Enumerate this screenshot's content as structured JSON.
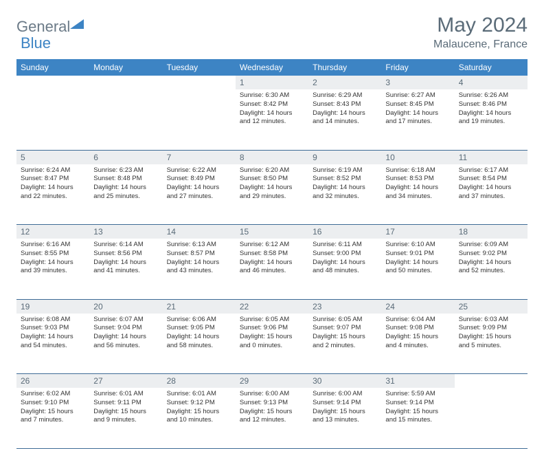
{
  "logo": {
    "general": "General",
    "blue": "Blue"
  },
  "title": "May 2024",
  "location": "Malaucene, France",
  "header_color": "#3d84c4",
  "daynum_bg": "#eceef0",
  "border_color": "#3d6a95",
  "days": [
    "Sunday",
    "Monday",
    "Tuesday",
    "Wednesday",
    "Thursday",
    "Friday",
    "Saturday"
  ],
  "weeks": [
    [
      null,
      null,
      null,
      {
        "n": "1",
        "sr": "6:30 AM",
        "ss": "8:42 PM",
        "dl": "14 hours and 12 minutes."
      },
      {
        "n": "2",
        "sr": "6:29 AM",
        "ss": "8:43 PM",
        "dl": "14 hours and 14 minutes."
      },
      {
        "n": "3",
        "sr": "6:27 AM",
        "ss": "8:45 PM",
        "dl": "14 hours and 17 minutes."
      },
      {
        "n": "4",
        "sr": "6:26 AM",
        "ss": "8:46 PM",
        "dl": "14 hours and 19 minutes."
      }
    ],
    [
      {
        "n": "5",
        "sr": "6:24 AM",
        "ss": "8:47 PM",
        "dl": "14 hours and 22 minutes."
      },
      {
        "n": "6",
        "sr": "6:23 AM",
        "ss": "8:48 PM",
        "dl": "14 hours and 25 minutes."
      },
      {
        "n": "7",
        "sr": "6:22 AM",
        "ss": "8:49 PM",
        "dl": "14 hours and 27 minutes."
      },
      {
        "n": "8",
        "sr": "6:20 AM",
        "ss": "8:50 PM",
        "dl": "14 hours and 29 minutes."
      },
      {
        "n": "9",
        "sr": "6:19 AM",
        "ss": "8:52 PM",
        "dl": "14 hours and 32 minutes."
      },
      {
        "n": "10",
        "sr": "6:18 AM",
        "ss": "8:53 PM",
        "dl": "14 hours and 34 minutes."
      },
      {
        "n": "11",
        "sr": "6:17 AM",
        "ss": "8:54 PM",
        "dl": "14 hours and 37 minutes."
      }
    ],
    [
      {
        "n": "12",
        "sr": "6:16 AM",
        "ss": "8:55 PM",
        "dl": "14 hours and 39 minutes."
      },
      {
        "n": "13",
        "sr": "6:14 AM",
        "ss": "8:56 PM",
        "dl": "14 hours and 41 minutes."
      },
      {
        "n": "14",
        "sr": "6:13 AM",
        "ss": "8:57 PM",
        "dl": "14 hours and 43 minutes."
      },
      {
        "n": "15",
        "sr": "6:12 AM",
        "ss": "8:58 PM",
        "dl": "14 hours and 46 minutes."
      },
      {
        "n": "16",
        "sr": "6:11 AM",
        "ss": "9:00 PM",
        "dl": "14 hours and 48 minutes."
      },
      {
        "n": "17",
        "sr": "6:10 AM",
        "ss": "9:01 PM",
        "dl": "14 hours and 50 minutes."
      },
      {
        "n": "18",
        "sr": "6:09 AM",
        "ss": "9:02 PM",
        "dl": "14 hours and 52 minutes."
      }
    ],
    [
      {
        "n": "19",
        "sr": "6:08 AM",
        "ss": "9:03 PM",
        "dl": "14 hours and 54 minutes."
      },
      {
        "n": "20",
        "sr": "6:07 AM",
        "ss": "9:04 PM",
        "dl": "14 hours and 56 minutes."
      },
      {
        "n": "21",
        "sr": "6:06 AM",
        "ss": "9:05 PM",
        "dl": "14 hours and 58 minutes."
      },
      {
        "n": "22",
        "sr": "6:05 AM",
        "ss": "9:06 PM",
        "dl": "15 hours and 0 minutes."
      },
      {
        "n": "23",
        "sr": "6:05 AM",
        "ss": "9:07 PM",
        "dl": "15 hours and 2 minutes."
      },
      {
        "n": "24",
        "sr": "6:04 AM",
        "ss": "9:08 PM",
        "dl": "15 hours and 4 minutes."
      },
      {
        "n": "25",
        "sr": "6:03 AM",
        "ss": "9:09 PM",
        "dl": "15 hours and 5 minutes."
      }
    ],
    [
      {
        "n": "26",
        "sr": "6:02 AM",
        "ss": "9:10 PM",
        "dl": "15 hours and 7 minutes."
      },
      {
        "n": "27",
        "sr": "6:01 AM",
        "ss": "9:11 PM",
        "dl": "15 hours and 9 minutes."
      },
      {
        "n": "28",
        "sr": "6:01 AM",
        "ss": "9:12 PM",
        "dl": "15 hours and 10 minutes."
      },
      {
        "n": "29",
        "sr": "6:00 AM",
        "ss": "9:13 PM",
        "dl": "15 hours and 12 minutes."
      },
      {
        "n": "30",
        "sr": "6:00 AM",
        "ss": "9:14 PM",
        "dl": "15 hours and 13 minutes."
      },
      {
        "n": "31",
        "sr": "5:59 AM",
        "ss": "9:14 PM",
        "dl": "15 hours and 15 minutes."
      },
      null
    ]
  ],
  "labels": {
    "sunrise": "Sunrise:",
    "sunset": "Sunset:",
    "daylight": "Daylight:"
  }
}
